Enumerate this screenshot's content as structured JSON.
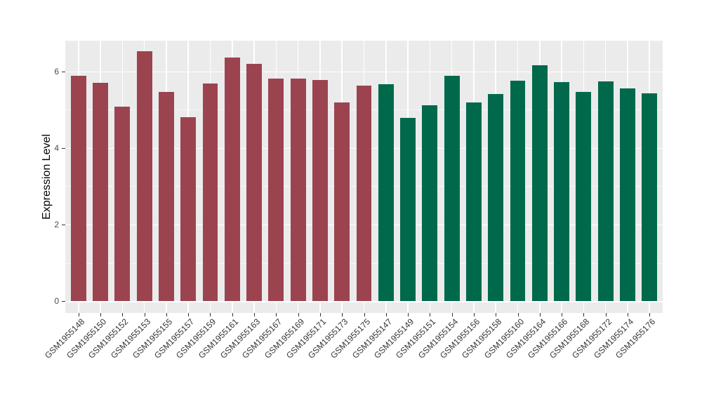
{
  "chart_data": {
    "type": "bar",
    "title": "",
    "xlabel": "",
    "ylabel": "Expression Level",
    "yticks": [
      0,
      2,
      4,
      6
    ],
    "minor_yticks": [
      1,
      3,
      5
    ],
    "ylim": [
      -0.31,
      6.8
    ],
    "grid": "on",
    "legend": "none",
    "panel_background": "#EBEBEB",
    "grid_color": "#FFFFFF",
    "axis_text_color": "#4d4d4d",
    "tick_color": "#333333",
    "group_split_index": 14,
    "group_colors": {
      "group1": "#9B4450",
      "group2": "#00694C"
    },
    "categories": [
      "GSM1955148",
      "GSM1955150",
      "GSM1955152",
      "GSM1955153",
      "GSM1955155",
      "GSM1955157",
      "GSM1955159",
      "GSM1955161",
      "GSM1955163",
      "GSM1955167",
      "GSM1955169",
      "GSM1955171",
      "GSM1955173",
      "GSM1955175",
      "GSM1955147",
      "GSM1955149",
      "GSM1955151",
      "GSM1955154",
      "GSM1955156",
      "GSM1955158",
      "GSM1955160",
      "GSM1955164",
      "GSM1955166",
      "GSM1955168",
      "GSM1955172",
      "GSM1955174",
      "GSM1955176"
    ],
    "values": [
      5.88,
      5.7,
      5.08,
      6.52,
      5.46,
      4.8,
      5.68,
      6.36,
      6.2,
      5.82,
      5.82,
      5.78,
      5.18,
      5.62,
      5.66,
      4.78,
      5.12,
      5.88,
      5.18,
      5.4,
      5.76,
      6.15,
      5.72,
      5.46,
      5.74,
      5.56,
      5.42
    ]
  }
}
